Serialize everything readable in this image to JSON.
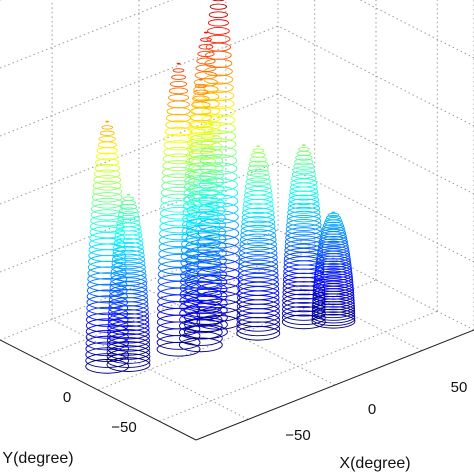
{
  "chart_data": {
    "type": "surface-3d",
    "title": "",
    "xlabel": "X(degree)",
    "ylabel": "Y(degree)",
    "zlabel": "",
    "x_ticks": [
      "−50",
      "0",
      "50"
    ],
    "y_ticks": [
      "−50",
      "0"
    ],
    "xlim": [
      -80,
      80
    ],
    "ylim": [
      -80,
      80
    ],
    "zlim": [
      0,
      1
    ],
    "grid": true,
    "colormap": "jet",
    "peaks": [
      {
        "x": -62,
        "y": 18,
        "z": 0.72
      },
      {
        "x": -54,
        "y": 12,
        "z": 0.5
      },
      {
        "x": -28,
        "y": 8,
        "z": 0.84
      },
      {
        "x": -18,
        "y": 4,
        "z": 0.78
      },
      {
        "x": -8,
        "y": 14,
        "z": 0.88
      },
      {
        "x": 2,
        "y": 18,
        "z": 1.0
      },
      {
        "x": 8,
        "y": -6,
        "z": 0.55
      },
      {
        "x": 30,
        "y": -12,
        "z": 0.52
      },
      {
        "x": 40,
        "y": -22,
        "z": 0.32
      }
    ]
  }
}
